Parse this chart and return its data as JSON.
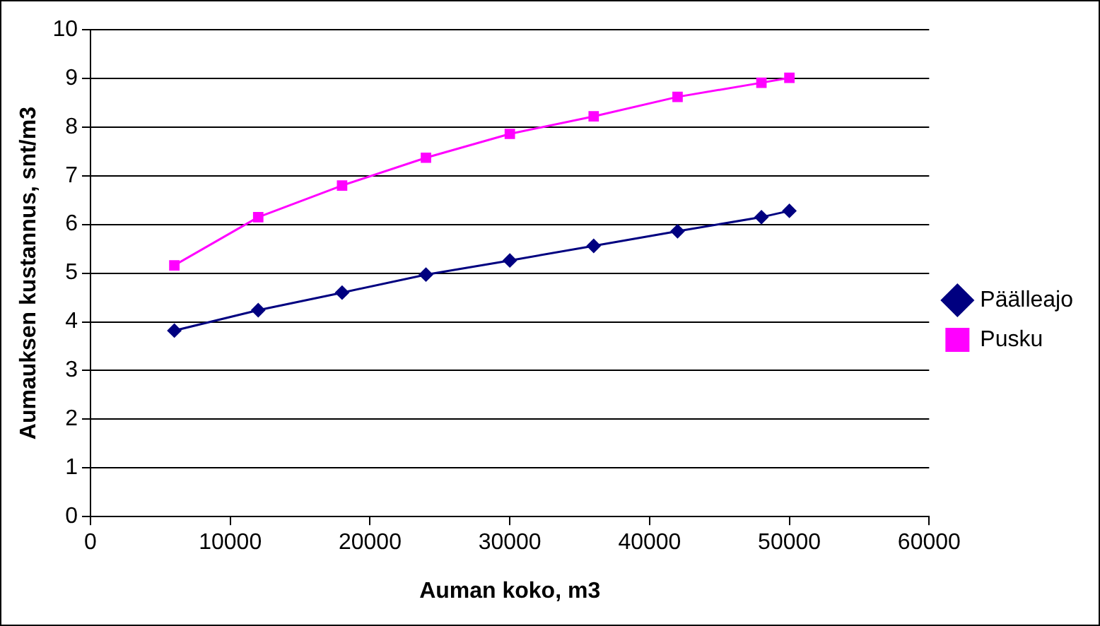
{
  "chart_data": {
    "type": "line",
    "xlabel": "Auman koko, m3",
    "ylabel": "Aumauksen kustannus, snt/m3",
    "xlim": [
      0,
      60000
    ],
    "xticks": [
      0,
      10000,
      20000,
      30000,
      40000,
      50000,
      60000
    ],
    "ylim": [
      0,
      10
    ],
    "yticks": [
      0,
      1,
      2,
      3,
      4,
      5,
      6,
      7,
      8,
      9,
      10
    ],
    "grid": "y",
    "legend": "right",
    "x": [
      6000,
      12000,
      18000,
      24000,
      30000,
      36000,
      42000,
      48000,
      50000
    ],
    "series": [
      {
        "name": "Päälleajo",
        "color": "#000080",
        "marker": "diamond",
        "values": [
          3.82,
          4.24,
          4.6,
          4.97,
          5.26,
          5.56,
          5.86,
          6.15,
          6.28
        ]
      },
      {
        "name": "Pusku",
        "color": "#ff00ff",
        "marker": "square",
        "values": [
          5.16,
          6.15,
          6.8,
          7.37,
          7.86,
          8.22,
          8.62,
          8.91,
          9.01
        ]
      }
    ]
  }
}
